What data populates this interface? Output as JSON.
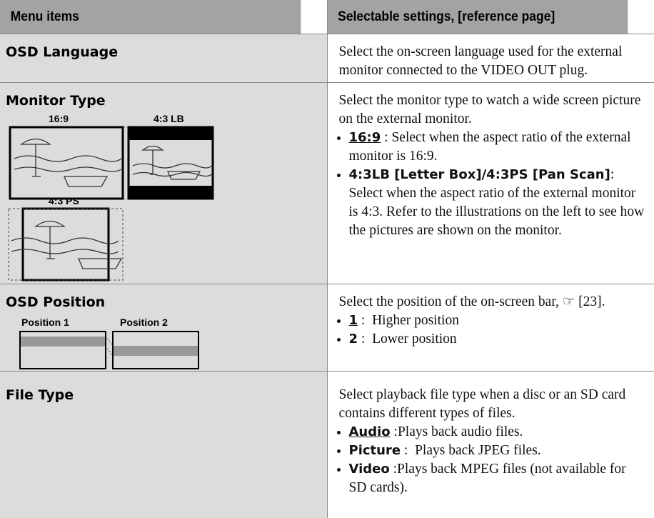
{
  "header": {
    "col1": "Menu items",
    "col2": "Selectable settings, [reference page]"
  },
  "rows": [
    {
      "item": "OSD Language",
      "description": "Select the on-screen language used for the external monitor connected to the VIDEO OUT plug."
    },
    {
      "item": "Monitor Type",
      "figure_labels": [
        "16:9",
        "4:3 LB",
        "4:3 PS"
      ],
      "description": "Select the monitor type to watch a wide screen picture on the external monitor.",
      "options": [
        {
          "term": "16:9",
          "text": " : Select when the aspect ratio of the external monitor is 16:9."
        },
        {
          "term": "4:3LB [Letter Box]/4:3PS [Pan Scan]",
          "text": ": Select when the aspect ratio of the external monitor is 4:3. Refer to the illustrations on the left to see how the pictures are shown on the monitor."
        }
      ]
    },
    {
      "item": "OSD Position",
      "figure_labels": [
        "Position 1",
        "Position 2"
      ],
      "description": "Select the position of the on-screen bar, ☞ [23].",
      "options": [
        {
          "term": "1",
          "text": " :  Higher position"
        },
        {
          "term": "2",
          "text": " :  Lower position"
        }
      ]
    },
    {
      "item": "File Type",
      "description": "Select playback file type when a disc or an SD card contains different types of files.",
      "options": [
        {
          "term": "Audio",
          "text": " :Plays back audio files."
        },
        {
          "term": "Picture",
          "text": " :  Plays back JPEG files."
        },
        {
          "term": "Video",
          "text": " :Plays back MPEG files (not available for SD cards)."
        }
      ]
    }
  ]
}
